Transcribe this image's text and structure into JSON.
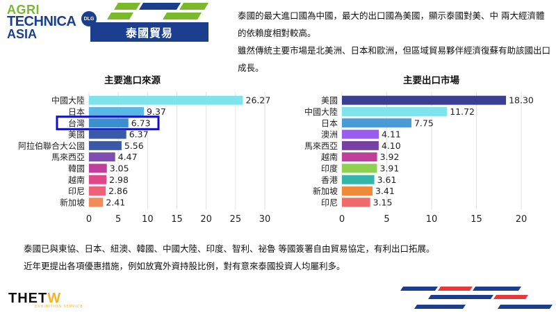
{
  "logo": {
    "line1": "AGRI",
    "line2": "TECHNICA",
    "line3": "ASIA",
    "badge": "DLG"
  },
  "header": {
    "title": "泰國貿易"
  },
  "intro": {
    "paragraph1": "泰國的最大進口國為中國，最大的出口國為美國，顯示泰國對美、中 兩大經濟體的依賴度相對較高。",
    "paragraph2": "雖然傳統主要市場是北美洲、日本和歐洲，但區域貿易夥伴經濟復蘇有助該國出口成長。"
  },
  "chart_data": [
    {
      "type": "bar",
      "orientation": "horizontal",
      "title": "主要進口來源",
      "categories": [
        "中國大陸",
        "日本",
        "台灣",
        "美國",
        "阿拉伯聯合大公國",
        "馬來西亞",
        "韓國",
        "越南",
        "印尼",
        "新加坡"
      ],
      "values": [
        26.27,
        9.37,
        6.73,
        6.37,
        5.56,
        4.47,
        3.05,
        2.98,
        2.86,
        2.41
      ],
      "colors": [
        "#7fe3ec",
        "#5bb8e4",
        "#3a8fcc",
        "#3a5aa8",
        "#3a5aa8",
        "#7e4fb0",
        "#c13f9a",
        "#e0468a",
        "#f0607a",
        "#f28a5a"
      ],
      "xlim": [
        0,
        30
      ],
      "xticks": [
        "0",
        "5",
        "10",
        "15",
        "20",
        "25",
        "30"
      ],
      "highlight": "台灣",
      "highlight_color": "#1010c8",
      "grid": true
    },
    {
      "type": "bar",
      "orientation": "horizontal",
      "title": "主要出口市場",
      "categories": [
        "美國",
        "中國大陸",
        "日本",
        "澳洲",
        "馬來西亞",
        "越南",
        "印度",
        "香港",
        "新加坡",
        "印尼"
      ],
      "values": [
        18.3,
        11.72,
        7.75,
        4.11,
        4.1,
        3.92,
        3.91,
        3.61,
        3.41,
        3.15
      ],
      "value_labels": [
        "18.30",
        "11.72",
        "7.75",
        "4.11",
        "4.10",
        "3.92",
        "3.91",
        "3.61",
        "3.41",
        "3.15"
      ],
      "colors": [
        "#3b3f91",
        "#7fe3ec",
        "#4a9ad6",
        "#9b5cf0",
        "#7a3fa6",
        "#c13f9a",
        "#8fd14f",
        "#33b5a8",
        "#f08a3a",
        "#f06a6a"
      ],
      "xlim": [
        0,
        20
      ],
      "xticks": [
        "0",
        "5",
        "10",
        "15",
        "20"
      ],
      "grid": true
    }
  ],
  "bottom": {
    "line1": "泰國已與東協、日本、紐澳、韓國、中國大陸、印度、智利、祕魯 等國簽署自由貿易協定，有利出口拓展。",
    "line2": "近年更提出各項優惠措施，例如放寬外資持股比例，對有意來泰國投資人均屬利多。"
  },
  "footer": {
    "brand_a": "THET",
    "brand_b": "W",
    "tagline": "EXHIBITION SERVICE"
  }
}
